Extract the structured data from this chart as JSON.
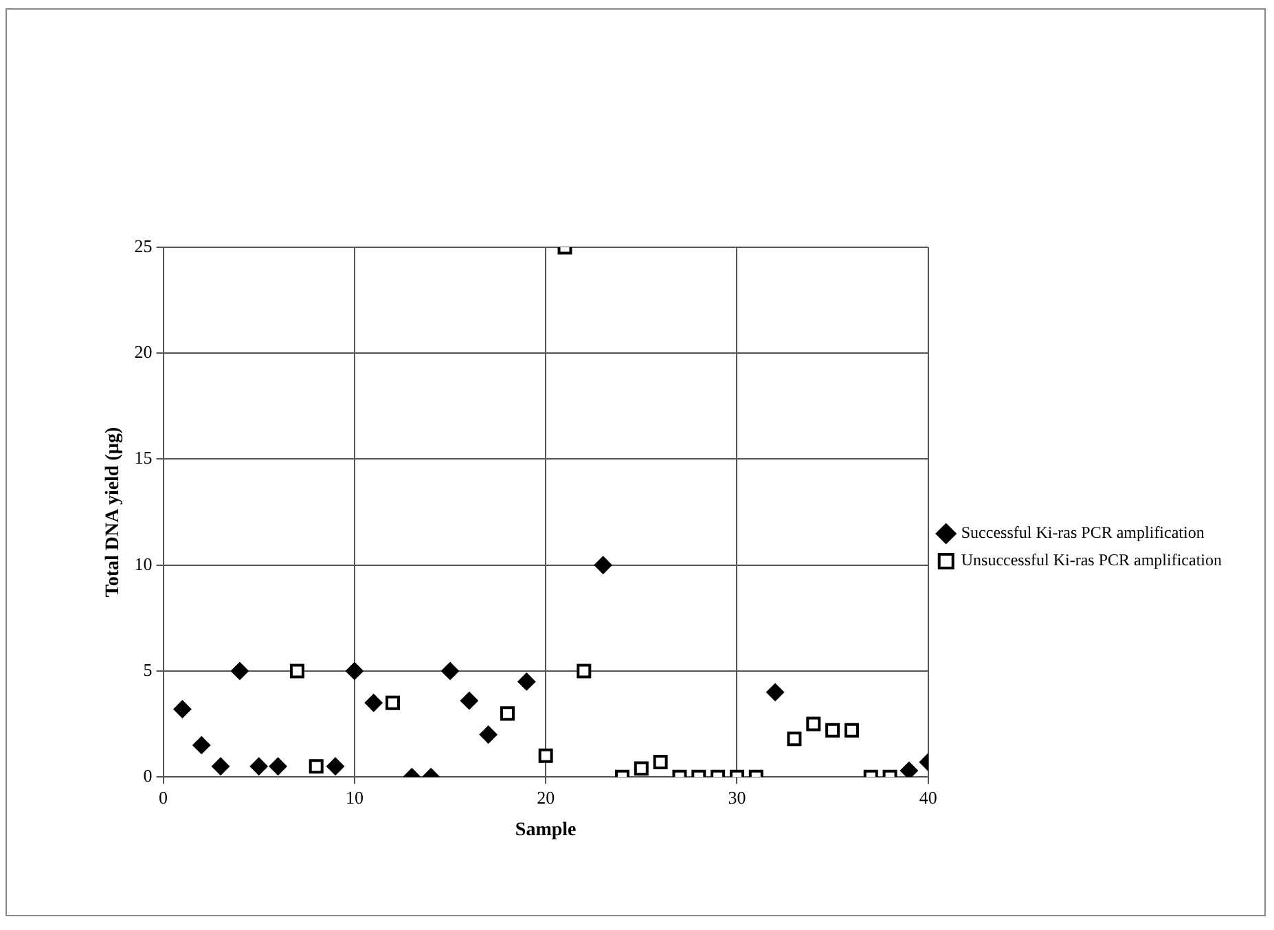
{
  "chart_data": {
    "type": "scatter",
    "xlabel": "Sample",
    "ylabel": "Total DNA yield (µg)",
    "xlim": [
      0,
      40
    ],
    "xticks": [
      0,
      10,
      20,
      30,
      40
    ],
    "ylim": [
      0,
      25
    ],
    "yticks": [
      0,
      5,
      10,
      15,
      20,
      25
    ],
    "grid": true,
    "legend": "right",
    "series": [
      {
        "name": "Successful Ki-ras PCR amplification",
        "color": "#000000",
        "marker": "diamond",
        "x": [
          1,
          2,
          3,
          4,
          5,
          6,
          9,
          10,
          11,
          13,
          14,
          15,
          16,
          17,
          19,
          23,
          32,
          39,
          40
        ],
        "values": [
          3.2,
          1.5,
          0.5,
          5,
          0.5,
          0.5,
          0.5,
          5,
          3.5,
          0,
          0,
          5,
          3.6,
          2,
          4.5,
          10,
          4,
          0.3,
          0.7
        ]
      },
      {
        "name": "Unsuccessful Ki-ras PCR amplification",
        "color": "#000000",
        "marker": "square",
        "x": [
          7,
          8,
          12,
          18,
          20,
          21,
          22,
          24,
          25,
          26,
          27,
          28,
          29,
          30,
          31,
          33,
          34,
          35,
          36,
          37,
          38
        ],
        "values": [
          5,
          0.5,
          3.5,
          3,
          1,
          25,
          5,
          0,
          0.4,
          0.7,
          0,
          0,
          0,
          0,
          0,
          1.8,
          2.5,
          2.2,
          2.2,
          0,
          0
        ]
      }
    ]
  }
}
